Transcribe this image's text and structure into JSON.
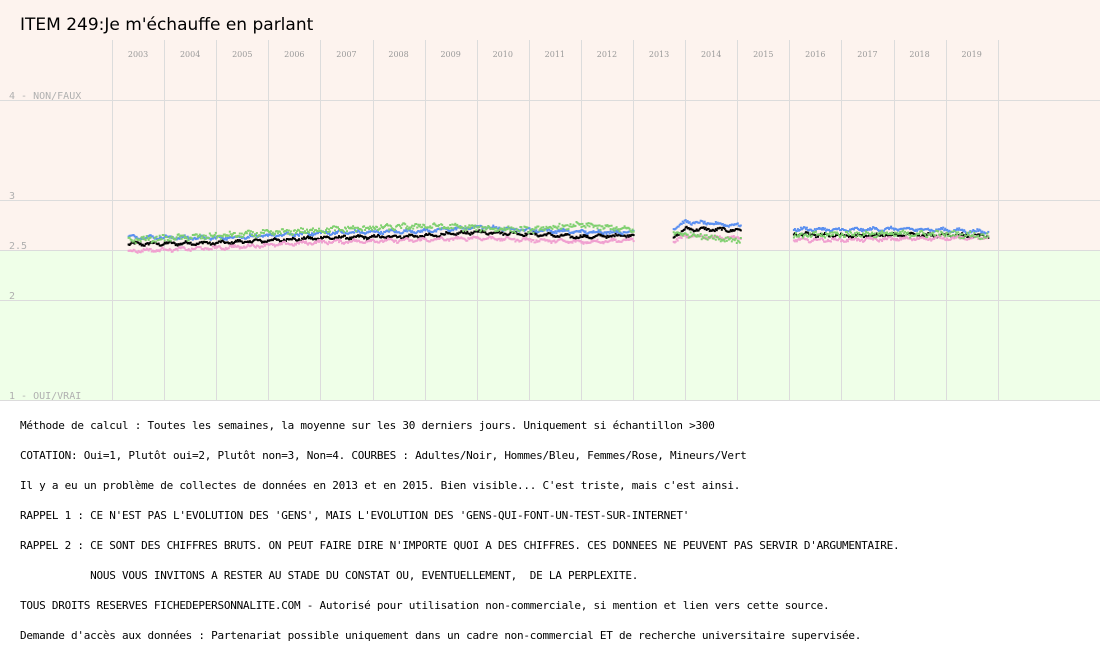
{
  "chart_data": {
    "type": "scatter",
    "title": "ITEM 249:Je m'échauffe en parlant",
    "years": [
      "2003",
      "2004",
      "2005",
      "2006",
      "2007",
      "2008",
      "2009",
      "2010",
      "2011",
      "2012",
      "2013",
      "2014",
      "2015",
      "2016",
      "2017",
      "2018",
      "2019"
    ],
    "y_ticks": [
      {
        "value": 4,
        "label": "4 - NON/FAUX"
      },
      {
        "value": 3,
        "label": "3"
      },
      {
        "value": 2.5,
        "label": "2.5"
      },
      {
        "value": 2,
        "label": "2"
      },
      {
        "value": 1,
        "label": "1 - OUI/VRAI"
      }
    ],
    "ylim": [
      1,
      4
    ],
    "grid": true,
    "background_bands": [
      {
        "from": 2.5,
        "to": 4,
        "color": "#fdf3ee"
      },
      {
        "from": 1,
        "to": 2.5,
        "color": "#efffe8"
      }
    ],
    "gaps": [
      [
        "2013.0",
        "2013.75"
      ],
      [
        "2015.05",
        "2016.05"
      ]
    ],
    "series": [
      {
        "name": "Adultes",
        "color": "#000000",
        "keypoints": [
          [
            2003.3,
            2.56
          ],
          [
            2005,
            2.57
          ],
          [
            2007,
            2.62
          ],
          [
            2009,
            2.64
          ],
          [
            2010,
            2.68
          ],
          [
            2011,
            2.66
          ],
          [
            2012,
            2.63
          ],
          [
            2012.95,
            2.65
          ],
          [
            2013.75,
            2.63
          ],
          [
            2014,
            2.71
          ],
          [
            2014.9,
            2.7
          ],
          [
            2016.05,
            2.66
          ],
          [
            2017,
            2.64
          ],
          [
            2018,
            2.65
          ],
          [
            2019,
            2.65
          ],
          [
            2019.8,
            2.64
          ]
        ]
      },
      {
        "name": "Hommes",
        "color": "#5a8ff0",
        "keypoints": [
          [
            2003.3,
            2.63
          ],
          [
            2005,
            2.62
          ],
          [
            2007,
            2.67
          ],
          [
            2009,
            2.69
          ],
          [
            2010,
            2.73
          ],
          [
            2011,
            2.7
          ],
          [
            2012,
            2.68
          ],
          [
            2012.95,
            2.68
          ],
          [
            2013.75,
            2.72
          ],
          [
            2014,
            2.78
          ],
          [
            2014.9,
            2.75
          ],
          [
            2016.05,
            2.71
          ],
          [
            2017,
            2.7
          ],
          [
            2018,
            2.71
          ],
          [
            2019,
            2.7
          ],
          [
            2019.8,
            2.68
          ]
        ]
      },
      {
        "name": "Femmes",
        "color": "#f0a0d0",
        "keypoints": [
          [
            2003.3,
            2.49
          ],
          [
            2005,
            2.52
          ],
          [
            2007,
            2.58
          ],
          [
            2009,
            2.6
          ],
          [
            2010,
            2.62
          ],
          [
            2011,
            2.6
          ],
          [
            2012,
            2.58
          ],
          [
            2012.95,
            2.6
          ],
          [
            2013.75,
            2.58
          ],
          [
            2014,
            2.64
          ],
          [
            2014.9,
            2.62
          ],
          [
            2016.05,
            2.6
          ],
          [
            2017,
            2.6
          ],
          [
            2018,
            2.61
          ],
          [
            2019,
            2.62
          ],
          [
            2019.8,
            2.62
          ]
        ]
      },
      {
        "name": "Mineurs",
        "color": "#80d070",
        "keypoints": [
          [
            2003.3,
            2.6
          ],
          [
            2005,
            2.64
          ],
          [
            2007,
            2.7
          ],
          [
            2009,
            2.74
          ],
          [
            2010,
            2.72
          ],
          [
            2011,
            2.7
          ],
          [
            2012,
            2.75
          ],
          [
            2012.95,
            2.7
          ],
          [
            2013.75,
            2.66
          ],
          [
            2014,
            2.66
          ],
          [
            2014.9,
            2.6
          ],
          [
            2016.05,
            2.64
          ],
          [
            2017,
            2.66
          ],
          [
            2018,
            2.66
          ],
          [
            2019,
            2.66
          ],
          [
            2019.8,
            2.64
          ]
        ]
      }
    ]
  },
  "notes": [
    "Méthode de calcul : Toutes les semaines, la moyenne sur les 30 derniers jours. Uniquement si échantillon >300",
    "COTATION: Oui=1, Plutôt oui=2, Plutôt non=3, Non=4. COURBES : Adultes/Noir, Hommes/Bleu, Femmes/Rose, Mineurs/Vert",
    "Il y a eu un problème de collectes de données en 2013 et en 2015. Bien visible... C'est triste, mais c'est ainsi.",
    "RAPPEL 1 : CE N'EST PAS L'EVOLUTION DES 'GENS', MAIS L'EVOLUTION DES 'GENS-QUI-FONT-UN-TEST-SUR-INTERNET'",
    "RAPPEL 2 : CE SONT DES CHIFFRES BRUTS. ON PEUT FAIRE DIRE N'IMPORTE QUOI A DES CHIFFRES. CES DONNEES NE PEUVENT PAS SERVIR D'ARGUMENTAIRE.",
    "           NOUS VOUS INVITONS A RESTER AU STADE DU CONSTAT OU, EVENTUELLEMENT,  DE LA PERPLEXITE.",
    "TOUS DROITS RESERVES FICHEDEPERSONNALITE.COM - Autorisé pour utilisation non-commerciale, si mention et lien vers cette source.",
    "Demande d'accès aux données : Partenariat possible uniquement dans un cadre non-commercial ET de recherche universitaire supervisée."
  ]
}
